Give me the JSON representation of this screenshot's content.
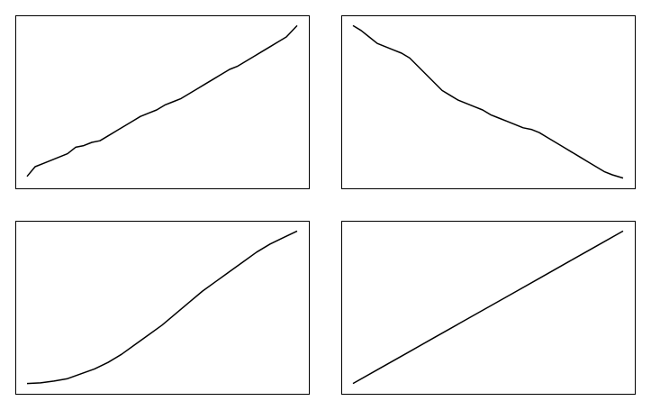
{
  "chart_data": [
    {
      "type": "line",
      "title": "",
      "xlabel": "",
      "ylabel": "",
      "grid": false,
      "x": [
        0,
        0.03,
        0.06,
        0.09,
        0.12,
        0.15,
        0.18,
        0.21,
        0.24,
        0.27,
        0.3,
        0.33,
        0.36,
        0.39,
        0.42,
        0.45,
        0.48,
        0.51,
        0.54,
        0.57,
        0.6,
        0.63,
        0.66,
        0.69,
        0.72,
        0.75,
        0.78,
        0.81,
        0.84,
        0.87,
        0.9,
        0.93,
        0.96,
        1.0
      ],
      "series": [
        {
          "values": [
            0.04,
            0.1,
            0.12,
            0.14,
            0.16,
            0.18,
            0.22,
            0.23,
            0.25,
            0.26,
            0.29,
            0.32,
            0.35,
            0.38,
            0.41,
            0.43,
            0.45,
            0.48,
            0.5,
            0.52,
            0.55,
            0.58,
            0.61,
            0.64,
            0.67,
            0.7,
            0.72,
            0.75,
            0.78,
            0.81,
            0.84,
            0.87,
            0.9,
            0.97
          ]
        }
      ]
    },
    {
      "type": "line",
      "title": "",
      "xlabel": "",
      "ylabel": "",
      "grid": false,
      "x": [
        0,
        0.03,
        0.06,
        0.09,
        0.12,
        0.15,
        0.18,
        0.21,
        0.24,
        0.27,
        0.3,
        0.33,
        0.36,
        0.39,
        0.42,
        0.45,
        0.48,
        0.51,
        0.54,
        0.57,
        0.6,
        0.63,
        0.66,
        0.69,
        0.72,
        0.75,
        0.78,
        0.81,
        0.84,
        0.87,
        0.9,
        0.93,
        0.96,
        1.0
      ],
      "series": [
        {
          "values": [
            0.97,
            0.94,
            0.9,
            0.86,
            0.84,
            0.82,
            0.8,
            0.77,
            0.72,
            0.67,
            0.62,
            0.57,
            0.54,
            0.51,
            0.49,
            0.47,
            0.45,
            0.42,
            0.4,
            0.38,
            0.36,
            0.34,
            0.33,
            0.31,
            0.28,
            0.25,
            0.22,
            0.19,
            0.16,
            0.13,
            0.1,
            0.07,
            0.05,
            0.03
          ]
        }
      ]
    },
    {
      "type": "line",
      "title": "",
      "xlabel": "",
      "ylabel": "",
      "grid": false,
      "x": [
        0,
        0.05,
        0.1,
        0.15,
        0.2,
        0.25,
        0.3,
        0.35,
        0.4,
        0.45,
        0.5,
        0.55,
        0.6,
        0.65,
        0.7,
        0.75,
        0.8,
        0.85,
        0.9,
        0.95,
        1.0
      ],
      "series": [
        {
          "values": [
            0.03,
            0.034,
            0.045,
            0.06,
            0.09,
            0.12,
            0.16,
            0.21,
            0.27,
            0.33,
            0.39,
            0.46,
            0.53,
            0.6,
            0.66,
            0.72,
            0.78,
            0.84,
            0.89,
            0.93,
            0.97
          ]
        }
      ]
    },
    {
      "type": "line",
      "title": "",
      "xlabel": "",
      "ylabel": "",
      "grid": false,
      "x": [
        0,
        0.1,
        0.2,
        0.3,
        0.4,
        0.5,
        0.6,
        0.7,
        0.8,
        0.9,
        1.0
      ],
      "series": [
        {
          "values": [
            0.03,
            0.124,
            0.218,
            0.312,
            0.406,
            0.5,
            0.594,
            0.688,
            0.782,
            0.876,
            0.97
          ]
        }
      ]
    }
  ]
}
